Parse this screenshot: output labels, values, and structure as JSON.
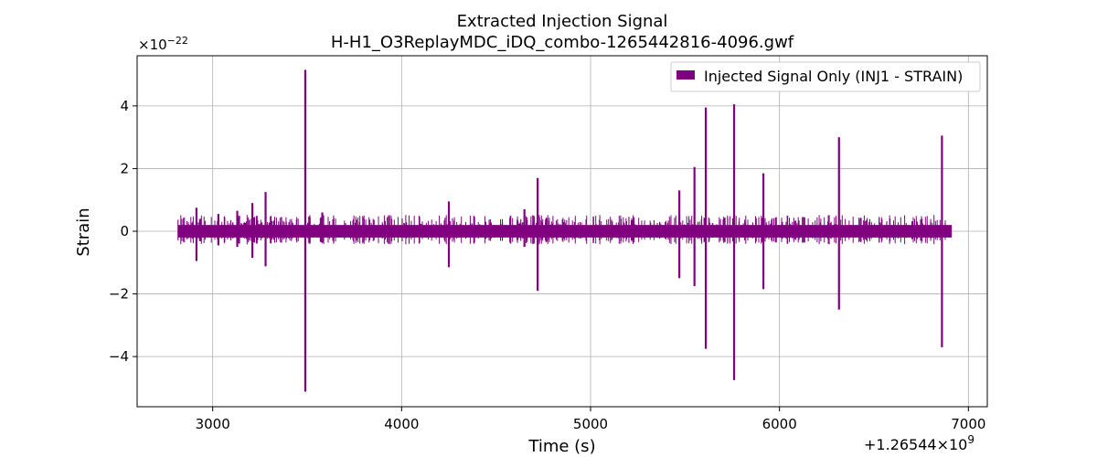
{
  "chart_data": {
    "type": "line",
    "title": "Extracted Injection Signal",
    "subtitle": "H-H1_O3ReplayMDC_iDQ_combo-1265442816-4096.gwf",
    "xlabel": "Time (s)",
    "ylabel": "Strain",
    "x_offset_label": "+1.26544×10",
    "x_offset_exp": "9",
    "y_scale_label": "×10",
    "y_scale_exp": "−22",
    "xlim": [
      2600,
      7100
    ],
    "ylim": [
      -5.6,
      5.6
    ],
    "xticks": [
      3000,
      4000,
      5000,
      6000,
      7000
    ],
    "xtick_labels": [
      "3000",
      "4000",
      "5000",
      "6000",
      "7000"
    ],
    "yticks": [
      -4,
      -2,
      0,
      2,
      4
    ],
    "ytick_labels": [
      "−4",
      "−2",
      "0",
      "2",
      "4"
    ],
    "grid": true,
    "legend_position": "top-right",
    "color": "#800080",
    "series": [
      {
        "name": "Injected Signal Only (INJ1 - STRAIN)",
        "x_range": [
          2816,
          6912
        ],
        "baseline_band": [
          -0.2,
          0.2
        ],
        "spikes": [
          {
            "x": 2914,
            "ymax": 0.75,
            "ymin": -0.95
          },
          {
            "x": 3030,
            "ymax": 0.55,
            "ymin": -0.45
          },
          {
            "x": 3130,
            "ymax": 0.65,
            "ymin": -0.5
          },
          {
            "x": 3210,
            "ymax": 0.9,
            "ymin": -0.85
          },
          {
            "x": 3280,
            "ymax": 1.25,
            "ymin": -1.12
          },
          {
            "x": 3490,
            "ymax": 5.15,
            "ymin": -5.12
          },
          {
            "x": 3580,
            "ymax": 0.6,
            "ymin": -0.35
          },
          {
            "x": 4250,
            "ymax": 0.95,
            "ymin": -1.15
          },
          {
            "x": 4650,
            "ymax": 0.7,
            "ymin": -0.5
          },
          {
            "x": 4720,
            "ymax": 1.7,
            "ymin": -1.9
          },
          {
            "x": 5470,
            "ymax": 1.3,
            "ymin": -1.5
          },
          {
            "x": 5550,
            "ymax": 2.05,
            "ymin": -1.75
          },
          {
            "x": 5610,
            "ymax": 3.95,
            "ymin": -3.75
          },
          {
            "x": 5760,
            "ymax": 4.05,
            "ymin": -4.75
          },
          {
            "x": 5915,
            "ymax": 1.85,
            "ymin": -1.85
          },
          {
            "x": 6315,
            "ymax": 3.0,
            "ymin": -2.5
          },
          {
            "x": 6860,
            "ymax": 3.05,
            "ymin": -3.7
          }
        ]
      }
    ]
  }
}
